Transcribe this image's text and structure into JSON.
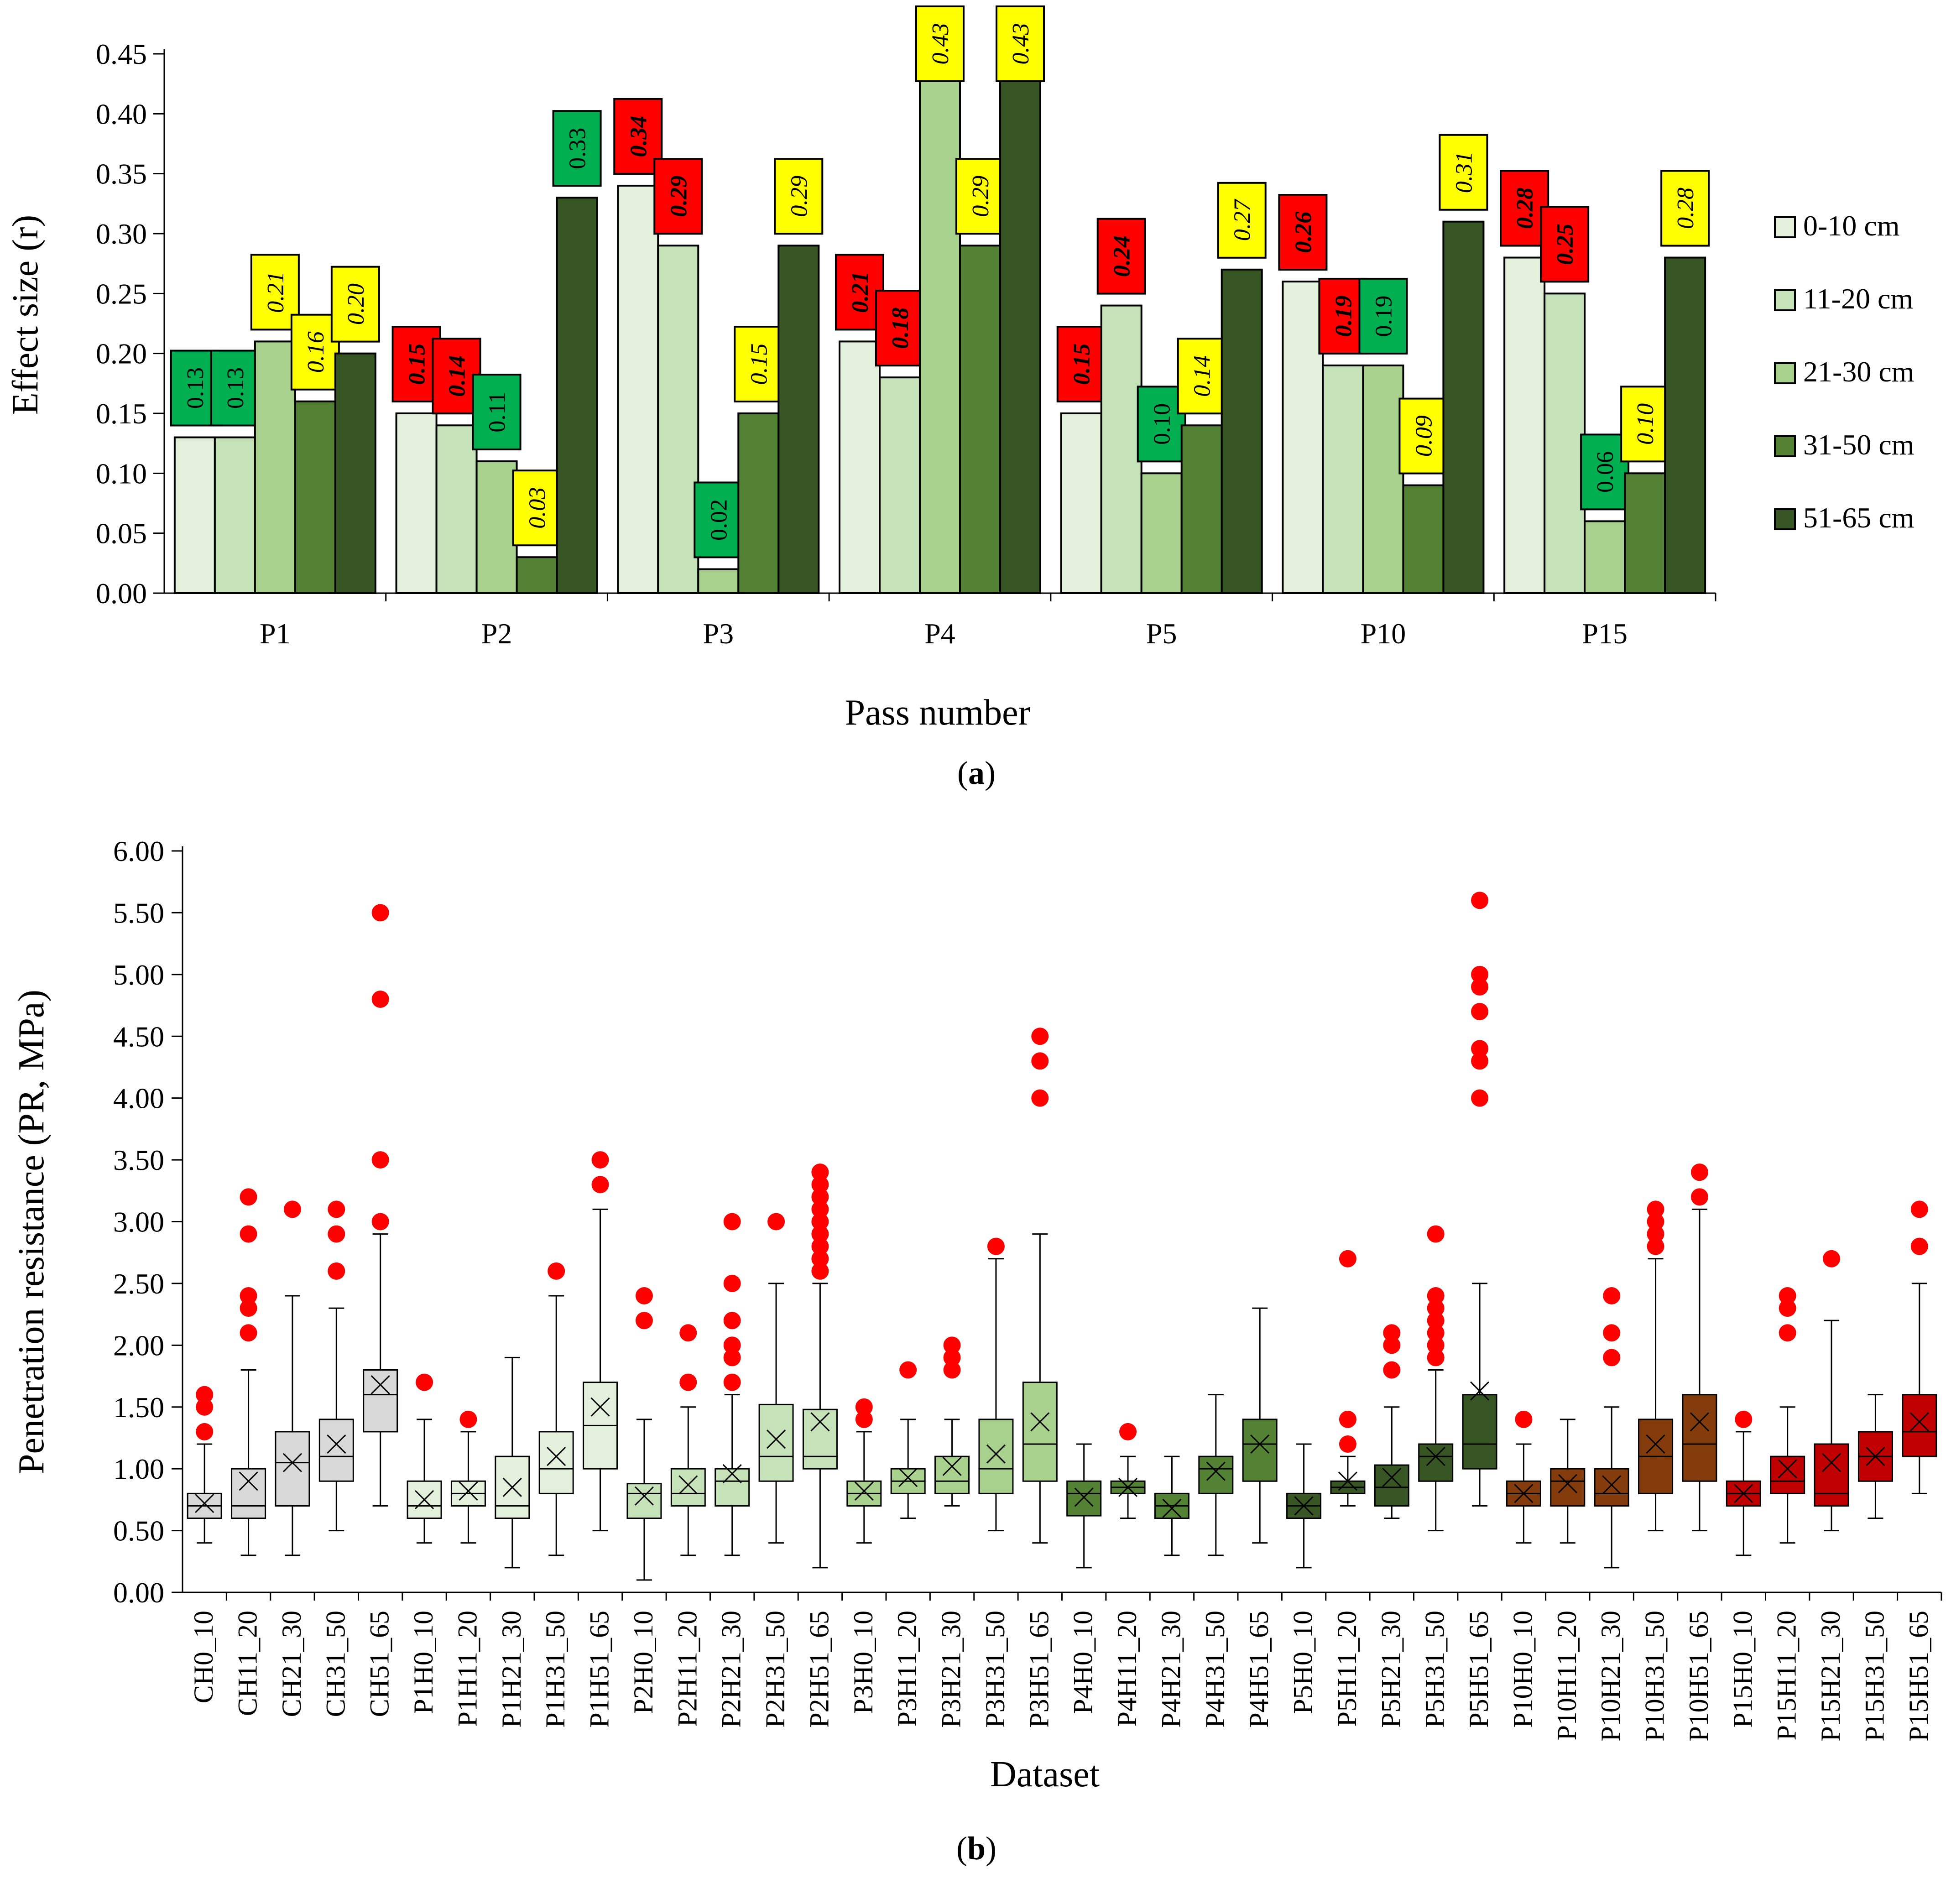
{
  "panel_a": {
    "panel_label": "a",
    "chart_data": {
      "type": "bar",
      "title": "",
      "xlabel": "Pass number",
      "ylabel": "Effect size (r)",
      "ylim": [
        0,
        0.45
      ],
      "yticks": [
        "0.00",
        "0.05",
        "0.10",
        "0.15",
        "0.20",
        "0.25",
        "0.30",
        "0.35",
        "0.40",
        "0.45"
      ],
      "categories": [
        "P1",
        "P2",
        "P3",
        "P4",
        "P5",
        "P10",
        "P15"
      ],
      "series": [
        {
          "name": "0-10 cm",
          "color": "#e3f1dc",
          "values": [
            0.13,
            0.15,
            0.34,
            0.21,
            0.15,
            0.26,
            0.28
          ]
        },
        {
          "name": "11-20 cm",
          "color": "#c5e2b9",
          "values": [
            0.13,
            0.14,
            0.29,
            0.18,
            0.24,
            0.19,
            0.25
          ]
        },
        {
          "name": "21-30 cm",
          "color": "#a9d18e",
          "values": [
            0.21,
            0.11,
            0.02,
            0.43,
            0.1,
            0.19,
            0.06
          ]
        },
        {
          "name": "31-50 cm",
          "color": "#548235",
          "values": [
            0.16,
            0.03,
            0.15,
            0.29,
            0.14,
            0.09,
            0.1
          ]
        },
        {
          "name": "51-65 cm",
          "color": "#375623",
          "values": [
            0.2,
            0.33,
            0.29,
            0.43,
            0.27,
            0.31,
            0.28
          ]
        }
      ],
      "data_labels": [
        [
          "0.13",
          "0.15",
          "0.34",
          "0.21",
          "0.15",
          "0.26",
          "0.28"
        ],
        [
          "0.13",
          "0.14",
          "0.29",
          "0.18",
          "0.24",
          "0.19",
          "0.25"
        ],
        [
          "0.21",
          "0.11",
          "0.02",
          "0.43",
          "0.10",
          "0.19",
          "0.06"
        ],
        [
          "0.16",
          "0.03",
          "0.15",
          "0.29",
          "0.14",
          "0.09",
          "0.10"
        ],
        [
          "0.20",
          "0.33",
          "0.29",
          "0.43",
          "0.27",
          "0.31",
          "0.28"
        ]
      ],
      "label_colors": [
        [
          "green",
          "red",
          "red",
          "red",
          "red",
          "red",
          "red"
        ],
        [
          "green",
          "red",
          "red",
          "red",
          "red",
          "red",
          "red"
        ],
        [
          "yellow",
          "green",
          "green",
          "yellow",
          "green",
          "green",
          "green"
        ],
        [
          "yellow",
          "yellow",
          "yellow",
          "yellow",
          "yellow",
          "yellow",
          "yellow"
        ],
        [
          "yellow",
          "green",
          "yellow",
          "yellow",
          "yellow",
          "yellow",
          "yellow"
        ]
      ],
      "label_palette": {
        "green": "#00b050",
        "red": "#ff0000",
        "yellow": "#ffff00"
      },
      "legend_position": "right"
    }
  },
  "panel_b": {
    "panel_label": "b",
    "chart_data": {
      "type": "box",
      "title": "",
      "xlabel": "Dataset",
      "ylabel": "Penetration resistance (PR, MPa)",
      "ylim": [
        0,
        6
      ],
      "yticks": [
        "0.00",
        "0.50",
        "1.00",
        "1.50",
        "2.00",
        "2.50",
        "3.00",
        "3.50",
        "4.00",
        "4.50",
        "5.00",
        "5.50",
        "6.00"
      ],
      "outlier_color": "#ff0000",
      "boxes": [
        {
          "name": "CH0_10",
          "color": "#d9d9d9",
          "min": 0.4,
          "q1": 0.6,
          "median": 0.7,
          "q3": 0.8,
          "max": 1.2,
          "mean": 0.72,
          "outliers": [
            1.3,
            1.5,
            1.6
          ]
        },
        {
          "name": "CH11_20",
          "color": "#d9d9d9",
          "min": 0.3,
          "q1": 0.6,
          "median": 0.7,
          "q3": 1.0,
          "max": 1.8,
          "mean": 0.9,
          "outliers": [
            2.1,
            2.3,
            2.4,
            2.9,
            3.2
          ]
        },
        {
          "name": "CH21_30",
          "color": "#d9d9d9",
          "min": 0.3,
          "q1": 0.7,
          "median": 1.05,
          "q3": 1.3,
          "max": 2.4,
          "mean": 1.05,
          "outliers": [
            3.1
          ]
        },
        {
          "name": "CH31_50",
          "color": "#d9d9d9",
          "min": 0.5,
          "q1": 0.9,
          "median": 1.1,
          "q3": 1.4,
          "max": 2.3,
          "mean": 1.2,
          "outliers": [
            2.6,
            2.9,
            3.1
          ]
        },
        {
          "name": "CH51_65",
          "color": "#d9d9d9",
          "min": 0.7,
          "q1": 1.3,
          "median": 1.6,
          "q3": 1.8,
          "max": 2.9,
          "mean": 1.68,
          "outliers": [
            3.0,
            3.5,
            4.8,
            5.5
          ]
        },
        {
          "name": "P1H0_10",
          "color": "#e3f1dc",
          "min": 0.4,
          "q1": 0.6,
          "median": 0.7,
          "q3": 0.9,
          "max": 1.4,
          "mean": 0.75,
          "outliers": [
            1.7
          ]
        },
        {
          "name": "P1H11_20",
          "color": "#e3f1dc",
          "min": 0.4,
          "q1": 0.7,
          "median": 0.8,
          "q3": 0.9,
          "max": 1.3,
          "mean": 0.82,
          "outliers": [
            1.4
          ]
        },
        {
          "name": "P1H21_30",
          "color": "#e3f1dc",
          "min": 0.2,
          "q1": 0.6,
          "median": 0.7,
          "q3": 1.1,
          "max": 1.9,
          "mean": 0.85,
          "outliers": []
        },
        {
          "name": "P1H31_50",
          "color": "#e3f1dc",
          "min": 0.3,
          "q1": 0.8,
          "median": 1.0,
          "q3": 1.3,
          "max": 2.4,
          "mean": 1.1,
          "outliers": [
            2.6
          ]
        },
        {
          "name": "P1H51_65",
          "color": "#e3f1dc",
          "min": 0.5,
          "q1": 1.0,
          "median": 1.35,
          "q3": 1.7,
          "max": 3.1,
          "mean": 1.5,
          "outliers": [
            3.3,
            3.5
          ]
        },
        {
          "name": "P2H0_10",
          "color": "#c5e2b9",
          "min": 0.1,
          "q1": 0.6,
          "median": 0.8,
          "q3": 0.88,
          "max": 1.4,
          "mean": 0.78,
          "outliers": [
            2.2,
            2.4
          ]
        },
        {
          "name": "P2H11_20",
          "color": "#c5e2b9",
          "min": 0.3,
          "q1": 0.7,
          "median": 0.8,
          "q3": 1.0,
          "max": 1.5,
          "mean": 0.87,
          "outliers": [
            1.7,
            2.1
          ]
        },
        {
          "name": "P2H21_30",
          "color": "#c5e2b9",
          "min": 0.3,
          "q1": 0.7,
          "median": 0.9,
          "q3": 1.0,
          "max": 1.6,
          "mean": 0.96,
          "outliers": [
            1.7,
            1.9,
            2.0,
            2.2,
            2.5,
            3.0
          ]
        },
        {
          "name": "P2H31_50",
          "color": "#c5e2b9",
          "min": 0.4,
          "q1": 0.9,
          "median": 1.1,
          "q3": 1.52,
          "max": 2.5,
          "mean": 1.24,
          "outliers": [
            3.0
          ]
        },
        {
          "name": "P2H51_65",
          "color": "#c5e2b9",
          "min": 0.2,
          "q1": 1.0,
          "median": 1.1,
          "q3": 1.48,
          "max": 2.5,
          "mean": 1.38,
          "outliers": [
            2.6,
            2.7,
            2.8,
            2.9,
            3.0,
            3.1,
            3.2,
            3.3,
            3.4
          ]
        },
        {
          "name": "P3H0_10",
          "color": "#a9d18e",
          "min": 0.4,
          "q1": 0.7,
          "median": 0.8,
          "q3": 0.9,
          "max": 1.3,
          "mean": 0.82,
          "outliers": [
            1.4,
            1.5
          ]
        },
        {
          "name": "P3H11_20",
          "color": "#a9d18e",
          "min": 0.6,
          "q1": 0.8,
          "median": 0.9,
          "q3": 1.0,
          "max": 1.4,
          "mean": 0.93,
          "outliers": [
            1.8
          ]
        },
        {
          "name": "P3H21_30",
          "color": "#a9d18e",
          "min": 0.7,
          "q1": 0.8,
          "median": 0.9,
          "q3": 1.1,
          "max": 1.4,
          "mean": 1.02,
          "outliers": [
            1.8,
            1.9,
            2.0
          ]
        },
        {
          "name": "P3H31_50",
          "color": "#a9d18e",
          "min": 0.5,
          "q1": 0.8,
          "median": 1.0,
          "q3": 1.4,
          "max": 2.7,
          "mean": 1.12,
          "outliers": [
            2.8
          ]
        },
        {
          "name": "P3H51_65",
          "color": "#a9d18e",
          "min": 0.4,
          "q1": 0.9,
          "median": 1.2,
          "q3": 1.7,
          "max": 2.9,
          "mean": 1.38,
          "outliers": [
            4.0,
            4.3,
            4.5
          ]
        },
        {
          "name": "P4H0_10",
          "color": "#548235",
          "min": 0.2,
          "q1": 0.62,
          "median": 0.8,
          "q3": 0.9,
          "max": 1.2,
          "mean": 0.77,
          "outliers": []
        },
        {
          "name": "P4H11_20",
          "color": "#548235",
          "min": 0.6,
          "q1": 0.8,
          "median": 0.85,
          "q3": 0.9,
          "max": 1.1,
          "mean": 0.85,
          "outliers": [
            1.3
          ]
        },
        {
          "name": "P4H21_30",
          "color": "#548235",
          "min": 0.3,
          "q1": 0.6,
          "median": 0.7,
          "q3": 0.8,
          "max": 1.1,
          "mean": 0.68,
          "outliers": []
        },
        {
          "name": "P4H31_50",
          "color": "#548235",
          "min": 0.3,
          "q1": 0.8,
          "median": 1.0,
          "q3": 1.1,
          "max": 1.6,
          "mean": 0.98,
          "outliers": []
        },
        {
          "name": "P4H51_65",
          "color": "#548235",
          "min": 0.4,
          "q1": 0.9,
          "median": 1.2,
          "q3": 1.4,
          "max": 2.3,
          "mean": 1.2,
          "outliers": []
        },
        {
          "name": "P5H0_10",
          "color": "#375623",
          "min": 0.2,
          "q1": 0.6,
          "median": 0.7,
          "q3": 0.8,
          "max": 1.2,
          "mean": 0.7,
          "outliers": []
        },
        {
          "name": "P5H11_20",
          "color": "#375623",
          "min": 0.7,
          "q1": 0.8,
          "median": 0.85,
          "q3": 0.9,
          "max": 1.1,
          "mean": 0.9,
          "outliers": [
            1.2,
            1.4,
            2.7
          ]
        },
        {
          "name": "P5H21_30",
          "color": "#375623",
          "min": 0.6,
          "q1": 0.7,
          "median": 0.85,
          "q3": 1.03,
          "max": 1.5,
          "mean": 0.93,
          "outliers": [
            1.8,
            2.0,
            2.1
          ]
        },
        {
          "name": "P5H31_50",
          "color": "#375623",
          "min": 0.5,
          "q1": 0.9,
          "median": 1.1,
          "q3": 1.2,
          "max": 1.8,
          "mean": 1.1,
          "outliers": [
            1.9,
            2.0,
            2.1,
            2.2,
            2.3,
            2.4,
            2.9
          ]
        },
        {
          "name": "P5H51_65",
          "color": "#375623",
          "min": 0.7,
          "q1": 1.0,
          "median": 1.2,
          "q3": 1.6,
          "max": 2.5,
          "mean": 1.63,
          "outliers": [
            4.0,
            4.3,
            4.4,
            4.7,
            4.9,
            5.0,
            5.6
          ]
        },
        {
          "name": "P10H0_10",
          "color": "#843c0c",
          "min": 0.4,
          "q1": 0.7,
          "median": 0.8,
          "q3": 0.9,
          "max": 1.2,
          "mean": 0.8,
          "outliers": [
            1.4
          ]
        },
        {
          "name": "P10H11_20",
          "color": "#843c0c",
          "min": 0.4,
          "q1": 0.7,
          "median": 0.9,
          "q3": 1.0,
          "max": 1.4,
          "mean": 0.88,
          "outliers": []
        },
        {
          "name": "P10H21_30",
          "color": "#843c0c",
          "min": 0.2,
          "q1": 0.7,
          "median": 0.8,
          "q3": 1.0,
          "max": 1.5,
          "mean": 0.87,
          "outliers": [
            1.9,
            2.1,
            2.4
          ]
        },
        {
          "name": "P10H31_50",
          "color": "#843c0c",
          "min": 0.5,
          "q1": 0.8,
          "median": 1.1,
          "q3": 1.4,
          "max": 2.7,
          "mean": 1.2,
          "outliers": [
            2.8,
            2.9,
            3.0,
            3.1
          ]
        },
        {
          "name": "P10H51_65",
          "color": "#843c0c",
          "min": 0.5,
          "q1": 0.9,
          "median": 1.2,
          "q3": 1.6,
          "max": 3.1,
          "mean": 1.38,
          "outliers": [
            3.2,
            3.4
          ]
        },
        {
          "name": "P15H0_10",
          "color": "#c00000",
          "min": 0.3,
          "q1": 0.7,
          "median": 0.8,
          "q3": 0.9,
          "max": 1.3,
          "mean": 0.8,
          "outliers": [
            1.4
          ]
        },
        {
          "name": "P15H11_20",
          "color": "#c00000",
          "min": 0.4,
          "q1": 0.8,
          "median": 0.9,
          "q3": 1.1,
          "max": 1.5,
          "mean": 1.0,
          "outliers": [
            2.1,
            2.3,
            2.4
          ]
        },
        {
          "name": "P15H21_30",
          "color": "#c00000",
          "min": 0.5,
          "q1": 0.7,
          "median": 0.8,
          "q3": 1.2,
          "max": 2.2,
          "mean": 1.05,
          "outliers": [
            2.7
          ]
        },
        {
          "name": "P15H31_50",
          "color": "#c00000",
          "min": 0.6,
          "q1": 0.9,
          "median": 1.1,
          "q3": 1.3,
          "max": 1.6,
          "mean": 1.1,
          "outliers": []
        },
        {
          "name": "P15H51_65",
          "color": "#c00000",
          "min": 0.8,
          "q1": 1.1,
          "median": 1.3,
          "q3": 1.6,
          "max": 2.5,
          "mean": 1.38,
          "outliers": [
            2.8,
            3.1
          ]
        }
      ]
    }
  }
}
